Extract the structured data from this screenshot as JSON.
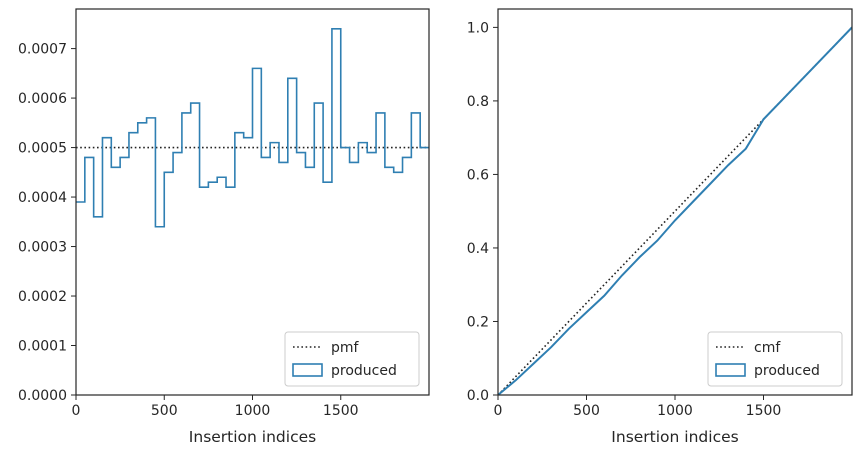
{
  "chart_data": [
    {
      "type": "step-histogram",
      "xlabel": "Insertion indices",
      "ylabel": "",
      "xlim": [
        0,
        2000
      ],
      "ylim": [
        0,
        0.00078
      ],
      "xticks": [
        0,
        500,
        1000,
        1500
      ],
      "xtick_labels": [
        "0",
        "500",
        "1000",
        "1500"
      ],
      "yticks": [
        0,
        0.0001,
        0.0002,
        0.0003,
        0.0004,
        0.0005,
        0.0006,
        0.0007
      ],
      "ytick_labels": [
        "0.0000",
        "0.0001",
        "0.0002",
        "0.0003",
        "0.0004",
        "0.0005",
        "0.0006",
        "0.0007"
      ],
      "legend_position": "lower-right",
      "series": [
        {
          "name": "pmf",
          "style": "dotted",
          "color": "#222222",
          "values": [
            0.0005
          ]
        },
        {
          "name": "produced",
          "style": "step",
          "color": "#2f7fb2",
          "bin_width": 50,
          "values": [
            0.00039,
            0.00048,
            0.00036,
            0.00052,
            0.00046,
            0.00048,
            0.00053,
            0.00055,
            0.00056,
            0.00034,
            0.00045,
            0.00049,
            0.00057,
            0.00059,
            0.00042,
            0.00043,
            0.00044,
            0.00042,
            0.00053,
            0.00052,
            0.00066,
            0.00048,
            0.00051,
            0.00047,
            0.00064,
            0.00049,
            0.00046,
            0.00059,
            0.00043,
            0.00074,
            0.0005,
            0.00047,
            0.00051,
            0.00049,
            0.00057,
            0.00046,
            0.00045,
            0.00048,
            0.00057,
            0.0005
          ]
        }
      ]
    },
    {
      "type": "line",
      "xlabel": "Insertion indices",
      "ylabel": "",
      "xlim": [
        0,
        2000
      ],
      "ylim": [
        0,
        1.05
      ],
      "xticks": [
        0,
        500,
        1000,
        1500
      ],
      "xtick_labels": [
        "0",
        "500",
        "1000",
        "1500"
      ],
      "yticks": [
        0,
        0.2,
        0.4,
        0.6,
        0.8,
        1.0
      ],
      "ytick_labels": [
        "0.0",
        "0.2",
        "0.4",
        "0.6",
        "0.8",
        "1.0"
      ],
      "legend_position": "lower-right",
      "series": [
        {
          "name": "cmf",
          "style": "dotted",
          "color": "#222222",
          "x": [
            0,
            2000
          ],
          "y": [
            0,
            1.0
          ]
        },
        {
          "name": "produced",
          "style": "line",
          "color": "#2f7fb2",
          "x": [
            0,
            100,
            200,
            300,
            400,
            500,
            600,
            700,
            800,
            900,
            1000,
            1100,
            1200,
            1300,
            1400,
            1450,
            1500,
            1600,
            1700,
            1800,
            1900,
            2000
          ],
          "y": [
            0,
            0.04,
            0.085,
            0.13,
            0.18,
            0.225,
            0.27,
            0.325,
            0.375,
            0.42,
            0.475,
            0.525,
            0.575,
            0.625,
            0.67,
            0.71,
            0.75,
            0.8,
            0.85,
            0.9,
            0.95,
            1.0
          ]
        }
      ]
    }
  ]
}
